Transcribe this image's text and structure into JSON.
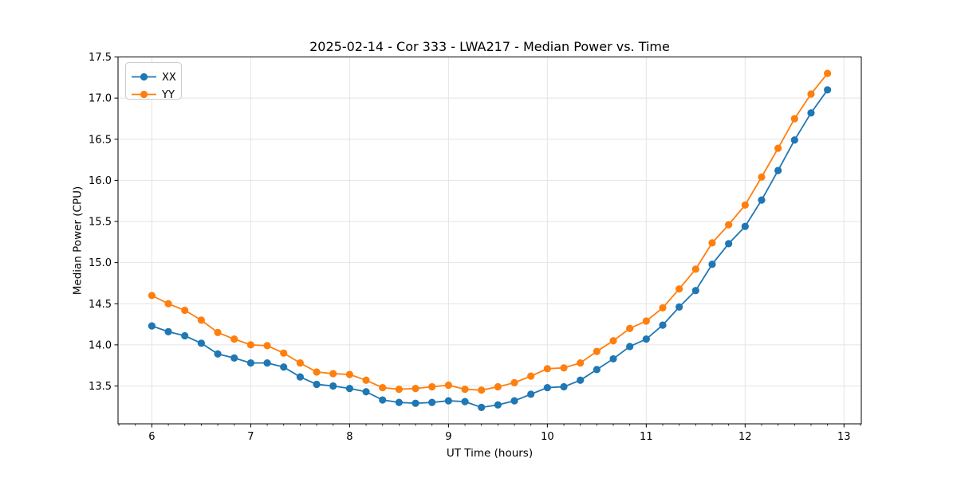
{
  "chart_data": {
    "type": "line",
    "title": "2025-02-14 - Cor 333 - LWA217 - Median Power vs. Time",
    "xlabel": "UT Time (hours)",
    "ylabel": "Median Power (CPU)",
    "xlim": [
      5.658,
      13.175
    ],
    "ylim": [
      13.04,
      17.5
    ],
    "x_ticks": [
      6,
      7,
      8,
      9,
      10,
      11,
      12,
      13
    ],
    "x_tick_labels": [
      "6",
      "7",
      "8",
      "9",
      "10",
      "11",
      "12",
      "13"
    ],
    "x_minor_tick_step": 0.16667,
    "y_ticks": [
      13.5,
      14.0,
      14.5,
      15.0,
      15.5,
      16.0,
      16.5,
      17.0,
      17.5
    ],
    "y_tick_labels": [
      "13.5",
      "14.0",
      "14.5",
      "15.0",
      "15.5",
      "16.0",
      "16.5",
      "17.0",
      "17.5"
    ],
    "grid": "major",
    "grid_color": "#e4e4e4",
    "axis_color": "#000000",
    "legend": {
      "position": "upper left",
      "entries": [
        "XX",
        "YY"
      ]
    },
    "x": [
      6.0,
      6.1667,
      6.3333,
      6.5,
      6.6667,
      6.8333,
      7.0,
      7.1667,
      7.3333,
      7.5,
      7.6667,
      7.8333,
      8.0,
      8.1667,
      8.3333,
      8.5,
      8.6667,
      8.8333,
      9.0,
      9.1667,
      9.3333,
      9.5,
      9.6667,
      9.8333,
      10.0,
      10.1667,
      10.3333,
      10.5,
      10.6667,
      10.8333,
      11.0,
      11.1667,
      11.3333,
      11.5,
      11.6667,
      11.8333,
      12.0,
      12.1667,
      12.3333,
      12.5,
      12.6667,
      12.8333
    ],
    "series": [
      {
        "name": "XX",
        "color": "#1f77b4",
        "values": [
          14.23,
          14.16,
          14.11,
          14.02,
          13.89,
          13.84,
          13.78,
          13.78,
          13.73,
          13.61,
          13.52,
          13.5,
          13.47,
          13.43,
          13.33,
          13.3,
          13.29,
          13.3,
          13.32,
          13.31,
          13.24,
          13.27,
          13.32,
          13.4,
          13.48,
          13.49,
          13.57,
          13.7,
          13.83,
          13.98,
          14.07,
          14.24,
          14.46,
          14.66,
          14.98,
          15.23,
          15.44,
          15.76,
          16.12,
          16.49,
          16.82,
          17.1
        ]
      },
      {
        "name": "YY",
        "color": "#ff7f0e",
        "values": [
          14.6,
          14.5,
          14.42,
          14.3,
          14.15,
          14.07,
          14.0,
          13.99,
          13.9,
          13.78,
          13.67,
          13.65,
          13.64,
          13.57,
          13.48,
          13.46,
          13.47,
          13.49,
          13.51,
          13.46,
          13.45,
          13.49,
          13.54,
          13.62,
          13.71,
          13.72,
          13.78,
          13.92,
          14.05,
          14.2,
          14.29,
          14.45,
          14.68,
          14.92,
          15.24,
          15.46,
          15.7,
          16.04,
          16.39,
          16.75,
          17.05,
          17.3
        ]
      }
    ]
  }
}
